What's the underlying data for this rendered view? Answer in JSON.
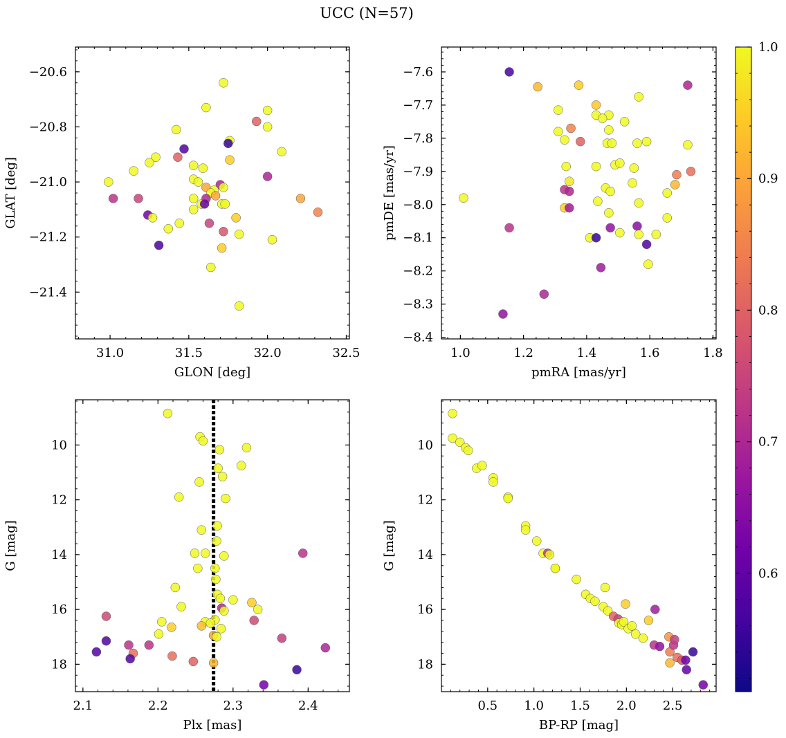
{
  "figure": {
    "title": "UCC (N=57)"
  },
  "colormap": {
    "name": "plasma",
    "range": [
      0.51,
      1.0
    ],
    "stops": [
      "#0d0887",
      "#46039f",
      "#7201a8",
      "#9c179e",
      "#bd3786",
      "#d8576b",
      "#ed7953",
      "#fb9f3a",
      "#fdca26",
      "#f0f921"
    ],
    "ticks": [
      0.6,
      0.7,
      0.8,
      0.9,
      1.0
    ],
    "tick_labels": [
      "0.6",
      "0.7",
      "0.8",
      "0.9",
      "1.0"
    ]
  },
  "chart_data": [
    {
      "type": "scatter",
      "title": "",
      "xlabel": "GLON [deg]",
      "ylabel": "GLAT [deg]",
      "xlim": [
        30.78,
        32.52
      ],
      "ylim": [
        -21.57,
        -20.51
      ],
      "xticks": [
        31.0,
        31.5,
        32.0,
        32.5
      ],
      "xtick_labels": [
        "31.0",
        "31.5",
        "32.0",
        "32.5"
      ],
      "yticks": [
        -20.6,
        -20.8,
        -21.0,
        -21.2,
        -21.4
      ],
      "ytick_labels": [
        "−20.6",
        "−20.8",
        "−21.0",
        "−21.2",
        "−21.4"
      ],
      "points": [
        [
          31.72,
          -20.64,
          1.0
        ],
        [
          31.61,
          -20.73,
          1.0
        ],
        [
          32.0,
          -20.74,
          1.0
        ],
        [
          31.93,
          -20.78,
          0.8
        ],
        [
          32.0,
          -20.8,
          1.0
        ],
        [
          31.42,
          -20.81,
          1.0
        ],
        [
          31.76,
          -20.85,
          1.0
        ],
        [
          31.75,
          -20.86,
          0.55
        ],
        [
          31.47,
          -20.88,
          0.58
        ],
        [
          32.09,
          -20.89,
          1.0
        ],
        [
          31.29,
          -20.91,
          1.0
        ],
        [
          31.43,
          -20.91,
          0.8
        ],
        [
          31.25,
          -20.93,
          1.0
        ],
        [
          31.76,
          -20.92,
          0.95
        ],
        [
          31.53,
          -20.94,
          1.0
        ],
        [
          31.59,
          -20.95,
          1.0
        ],
        [
          31.15,
          -20.96,
          1.0
        ],
        [
          32.0,
          -20.98,
          0.7
        ],
        [
          30.99,
          -21.0,
          1.0
        ],
        [
          31.53,
          -20.99,
          1.0
        ],
        [
          31.56,
          -21.0,
          1.0
        ],
        [
          31.61,
          -21.02,
          0.9
        ],
        [
          31.7,
          -21.01,
          0.7
        ],
        [
          31.72,
          -21.02,
          1.0
        ],
        [
          31.66,
          -21.03,
          1.0
        ],
        [
          31.64,
          -21.04,
          1.0
        ],
        [
          31.67,
          -21.05,
          0.9
        ],
        [
          31.61,
          -21.06,
          0.7
        ],
        [
          31.02,
          -21.06,
          0.72
        ],
        [
          31.18,
          -21.06,
          0.75
        ],
        [
          32.21,
          -21.06,
          0.9
        ],
        [
          31.53,
          -21.06,
          1.0
        ],
        [
          31.71,
          -21.08,
          1.0
        ],
        [
          31.58,
          -21.08,
          1.0
        ],
        [
          31.6,
          -21.08,
          0.6
        ],
        [
          31.73,
          -21.08,
          1.0
        ],
        [
          31.53,
          -21.1,
          1.0
        ],
        [
          32.32,
          -21.11,
          0.85
        ],
        [
          31.24,
          -21.12,
          0.62
        ],
        [
          31.27,
          -21.13,
          1.0
        ],
        [
          31.8,
          -21.13,
          0.95
        ],
        [
          31.63,
          -21.15,
          0.75
        ],
        [
          31.44,
          -21.15,
          1.0
        ],
        [
          31.37,
          -21.17,
          1.0
        ],
        [
          31.72,
          -21.18,
          0.78
        ],
        [
          31.82,
          -21.19,
          1.0
        ],
        [
          32.03,
          -21.21,
          1.0
        ],
        [
          31.31,
          -21.23,
          0.57
        ],
        [
          31.71,
          -21.24,
          0.95
        ],
        [
          31.64,
          -21.31,
          1.0
        ],
        [
          31.82,
          -21.45,
          1.0
        ]
      ]
    },
    {
      "type": "scatter",
      "title": "",
      "xlabel": "pmRA [mas/yr]",
      "ylabel": "pmDE [mas/yr]",
      "xlim": [
        0.94,
        1.81
      ],
      "ylim": [
        -8.405,
        -7.525
      ],
      "xticks": [
        1.0,
        1.2,
        1.4,
        1.6,
        1.8
      ],
      "xtick_labels": [
        "1.0",
        "1.2",
        "1.4",
        "1.6",
        "1.8"
      ],
      "yticks": [
        -7.6,
        -7.7,
        -7.8,
        -7.9,
        -8.0,
        -8.1,
        -8.2,
        -8.3,
        -8.4
      ],
      "ytick_labels": [
        "−7.6",
        "−7.7",
        "−7.8",
        "−7.9",
        "−8.0",
        "−8.1",
        "−8.2",
        "−8.3",
        "−8.4"
      ],
      "points": [
        [
          1.155,
          -7.6,
          0.57
        ],
        [
          1.245,
          -7.645,
          0.92
        ],
        [
          1.375,
          -7.64,
          0.95
        ],
        [
          1.72,
          -7.64,
          0.7
        ],
        [
          1.565,
          -7.675,
          1.0
        ],
        [
          1.43,
          -7.7,
          0.94
        ],
        [
          1.31,
          -7.715,
          1.0
        ],
        [
          1.43,
          -7.73,
          1.0
        ],
        [
          1.47,
          -7.73,
          1.0
        ],
        [
          1.45,
          -7.74,
          1.0
        ],
        [
          1.52,
          -7.75,
          1.0
        ],
        [
          1.35,
          -7.77,
          0.85
        ],
        [
          1.47,
          -7.775,
          1.0
        ],
        [
          1.31,
          -7.78,
          1.0
        ],
        [
          1.33,
          -7.805,
          1.0
        ],
        [
          1.38,
          -7.81,
          0.8
        ],
        [
          1.59,
          -7.81,
          1.0
        ],
        [
          1.465,
          -7.815,
          1.0
        ],
        [
          1.48,
          -7.815,
          1.0
        ],
        [
          1.56,
          -7.815,
          1.0
        ],
        [
          1.72,
          -7.82,
          1.0
        ],
        [
          1.335,
          -7.885,
          1.0
        ],
        [
          1.43,
          -7.885,
          1.0
        ],
        [
          1.49,
          -7.88,
          1.0
        ],
        [
          1.505,
          -7.875,
          1.0
        ],
        [
          1.55,
          -7.89,
          1.0
        ],
        [
          1.73,
          -7.9,
          0.82
        ],
        [
          1.685,
          -7.91,
          0.84
        ],
        [
          1.345,
          -7.93,
          0.98
        ],
        [
          1.545,
          -7.935,
          1.0
        ],
        [
          1.68,
          -7.94,
          0.92
        ],
        [
          1.46,
          -7.95,
          1.0
        ],
        [
          1.33,
          -7.955,
          0.72
        ],
        [
          1.345,
          -7.96,
          0.7
        ],
        [
          1.475,
          -7.96,
          1.0
        ],
        [
          1.655,
          -7.965,
          1.0
        ],
        [
          1.01,
          -7.98,
          1.0
        ],
        [
          1.435,
          -7.99,
          1.0
        ],
        [
          1.565,
          -7.995,
          1.0
        ],
        [
          1.33,
          -8.01,
          0.95
        ],
        [
          1.345,
          -8.01,
          0.68
        ],
        [
          1.47,
          -8.025,
          1.0
        ],
        [
          1.655,
          -8.04,
          1.0
        ],
        [
          1.56,
          -8.065,
          0.65
        ],
        [
          1.155,
          -8.07,
          0.72
        ],
        [
          1.475,
          -8.07,
          0.66
        ],
        [
          1.505,
          -8.085,
          1.0
        ],
        [
          1.565,
          -8.09,
          1.0
        ],
        [
          1.62,
          -8.09,
          1.0
        ],
        [
          1.41,
          -8.1,
          1.0
        ],
        [
          1.43,
          -8.1,
          0.55
        ],
        [
          1.59,
          -8.12,
          0.58
        ],
        [
          1.595,
          -8.18,
          1.0
        ],
        [
          1.445,
          -8.19,
          0.68
        ],
        [
          1.265,
          -8.27,
          0.7
        ],
        [
          1.135,
          -8.33,
          0.66
        ]
      ]
    },
    {
      "type": "scatter",
      "title": "",
      "xlabel": "Plx [mas]",
      "ylabel": "G [mag]",
      "xlim": [
        2.09,
        2.455
      ],
      "ylim": [
        19.0,
        8.35
      ],
      "yinverted": true,
      "xticks": [
        2.1,
        2.2,
        2.3,
        2.4
      ],
      "xtick_labels": [
        "2.1",
        "2.2",
        "2.3",
        "2.4"
      ],
      "yticks": [
        10,
        12,
        14,
        16,
        18
      ],
      "ytick_labels": [
        "10",
        "12",
        "14",
        "16",
        "18"
      ],
      "vline": {
        "x": 2.274,
        "style": "dotted",
        "color": "#000000"
      },
      "points": [
        [
          2.213,
          8.85,
          1.0
        ],
        [
          2.256,
          9.7,
          1.0
        ],
        [
          2.26,
          9.85,
          1.0
        ],
        [
          2.318,
          10.1,
          1.0
        ],
        [
          2.282,
          10.17,
          1.0
        ],
        [
          2.311,
          10.75,
          1.0
        ],
        [
          2.28,
          10.85,
          1.0
        ],
        [
          2.286,
          11.15,
          1.0
        ],
        [
          2.255,
          11.35,
          1.0
        ],
        [
          2.228,
          11.9,
          1.0
        ],
        [
          2.29,
          11.95,
          1.0
        ],
        [
          2.279,
          12.95,
          1.0
        ],
        [
          2.258,
          13.1,
          1.0
        ],
        [
          2.278,
          13.5,
          1.0
        ],
        [
          2.249,
          13.95,
          1.0
        ],
        [
          2.263,
          13.95,
          1.0
        ],
        [
          2.393,
          13.95,
          0.72
        ],
        [
          2.288,
          14.05,
          1.0
        ],
        [
          2.276,
          14.5,
          1.0
        ],
        [
          2.253,
          14.5,
          1.0
        ],
        [
          2.277,
          14.9,
          1.0
        ],
        [
          2.223,
          15.2,
          1.0
        ],
        [
          2.279,
          15.45,
          1.0
        ],
        [
          2.283,
          15.6,
          1.0
        ],
        [
          2.3,
          15.65,
          1.0
        ],
        [
          2.325,
          15.75,
          0.95
        ],
        [
          2.231,
          15.9,
          1.0
        ],
        [
          2.285,
          15.95,
          0.7
        ],
        [
          2.288,
          16.05,
          1.0
        ],
        [
          2.333,
          16.0,
          1.0
        ],
        [
          2.131,
          16.25,
          0.76
        ],
        [
          2.328,
          16.4,
          0.76
        ],
        [
          2.276,
          16.38,
          1.0
        ],
        [
          2.205,
          16.45,
          1.0
        ],
        [
          2.263,
          16.45,
          1.0
        ],
        [
          2.27,
          16.5,
          1.0
        ],
        [
          2.258,
          16.6,
          0.93
        ],
        [
          2.218,
          16.65,
          0.95
        ],
        [
          2.284,
          16.7,
          1.0
        ],
        [
          2.201,
          16.9,
          1.0
        ],
        [
          2.274,
          16.95,
          0.9
        ],
        [
          2.278,
          17.0,
          1.0
        ],
        [
          2.365,
          17.05,
          0.74
        ],
        [
          2.131,
          17.15,
          0.58
        ],
        [
          2.161,
          17.3,
          0.72
        ],
        [
          2.188,
          17.3,
          0.72
        ],
        [
          2.423,
          17.4,
          0.7
        ],
        [
          2.118,
          17.55,
          0.58
        ],
        [
          2.167,
          17.6,
          0.82
        ],
        [
          2.219,
          17.7,
          0.82
        ],
        [
          2.163,
          17.8,
          0.58
        ],
        [
          2.247,
          17.9,
          0.8
        ],
        [
          2.274,
          17.95,
          0.92
        ],
        [
          2.385,
          18.2,
          0.55
        ],
        [
          2.341,
          18.75,
          0.62
        ]
      ]
    },
    {
      "type": "scatter",
      "title": "",
      "xlabel": "BP-RP [mag]",
      "ylabel": "G [mag]",
      "xlim": [
        0.0,
        2.97
      ],
      "ylim": [
        19.0,
        8.35
      ],
      "yinverted": true,
      "xticks": [
        0.5,
        1.0,
        1.5,
        2.0,
        2.5
      ],
      "xtick_labels": [
        "0.5",
        "1.0",
        "1.5",
        "2.0",
        "2.5"
      ],
      "yticks": [
        10,
        12,
        14,
        16,
        18
      ],
      "ytick_labels": [
        "10",
        "12",
        "14",
        "16",
        "18"
      ],
      "points": [
        [
          0.12,
          8.85,
          1.0
        ],
        [
          0.12,
          9.75,
          1.0
        ],
        [
          0.2,
          9.9,
          1.0
        ],
        [
          0.26,
          10.1,
          1.0
        ],
        [
          0.29,
          10.2,
          1.0
        ],
        [
          0.38,
          10.85,
          1.0
        ],
        [
          0.44,
          10.75,
          1.0
        ],
        [
          0.56,
          11.2,
          1.0
        ],
        [
          0.56,
          11.35,
          1.0
        ],
        [
          0.72,
          11.9,
          1.0
        ],
        [
          0.72,
          11.95,
          1.0
        ],
        [
          0.91,
          12.95,
          1.0
        ],
        [
          0.91,
          13.1,
          1.0
        ],
        [
          1.03,
          13.5,
          1.0
        ],
        [
          1.1,
          13.95,
          1.0
        ],
        [
          1.15,
          13.95,
          0.72
        ],
        [
          1.17,
          14.0,
          1.0
        ],
        [
          1.23,
          14.5,
          1.0
        ],
        [
          1.23,
          14.5,
          1.0
        ],
        [
          1.46,
          14.9,
          1.0
        ],
        [
          1.56,
          15.45,
          1.0
        ],
        [
          1.61,
          15.6,
          1.0
        ],
        [
          1.66,
          15.7,
          1.0
        ],
        [
          1.75,
          15.9,
          1.0
        ],
        [
          1.77,
          15.2,
          1.0
        ],
        [
          1.8,
          16.05,
          1.0
        ],
        [
          1.86,
          16.25,
          0.8
        ],
        [
          1.91,
          16.35,
          0.75
        ],
        [
          1.92,
          16.5,
          1.0
        ],
        [
          1.95,
          16.55,
          1.0
        ],
        [
          1.97,
          16.45,
          1.0
        ],
        [
          1.99,
          15.8,
          0.95
        ],
        [
          2.02,
          16.7,
          1.0
        ],
        [
          2.06,
          16.6,
          1.0
        ],
        [
          2.1,
          16.9,
          1.0
        ],
        [
          2.18,
          17.05,
          1.0
        ],
        [
          2.24,
          16.4,
          0.95
        ],
        [
          2.3,
          17.3,
          0.72
        ],
        [
          2.31,
          16.0,
          0.68
        ],
        [
          2.36,
          17.35,
          0.66
        ],
        [
          2.46,
          17.0,
          0.88
        ],
        [
          2.47,
          17.55,
          0.84
        ],
        [
          2.47,
          17.95,
          0.92
        ],
        [
          2.51,
          17.3,
          0.72
        ],
        [
          2.52,
          17.1,
          0.74
        ],
        [
          2.55,
          17.75,
          0.82
        ],
        [
          2.6,
          17.85,
          0.78
        ],
        [
          2.64,
          17.85,
          0.62
        ],
        [
          2.65,
          18.2,
          0.6
        ],
        [
          2.72,
          17.55,
          0.55
        ],
        [
          2.83,
          18.75,
          0.62
        ]
      ]
    }
  ]
}
